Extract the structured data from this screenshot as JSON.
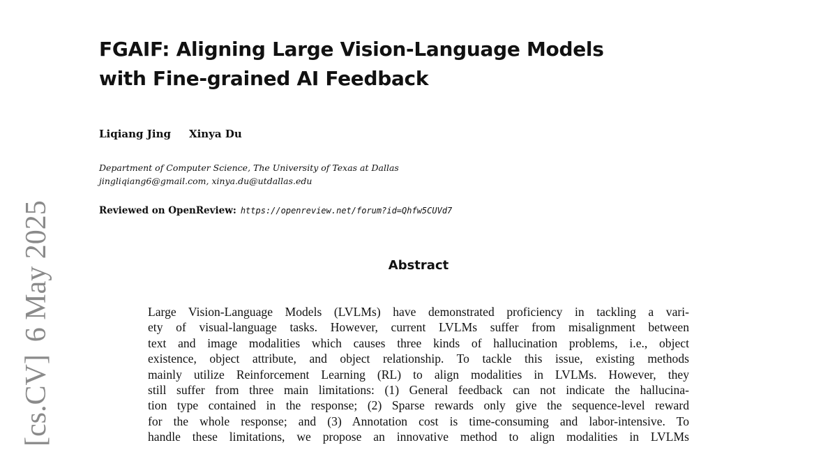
{
  "arxiv_stamp": {
    "category": "[cs.CV]",
    "date": "6 May 2025"
  },
  "paper": {
    "title_lines": [
      "FGAIF: Aligning Large Vision-Language Models",
      "with Fine-grained AI Feedback"
    ],
    "authors": [
      "Liqiang Jing",
      "Xinya Du"
    ],
    "affiliation": "Department of Computer Science, The University of Texas at Dallas",
    "emails": "jingliqiang6@gmail.com, xinya.du@utdallas.edu",
    "review_label": "Reviewed on OpenReview:",
    "review_url": "https://openreview.net/forum?id=Qhfw5CUVd7",
    "abstract_heading": "Abstract",
    "abstract_lines": [
      "Large Vision-Language Models (LVLMs) have demonstrated proficiency in tackling a vari-",
      "ety of visual-language tasks. However, current LVLMs suffer from misalignment between",
      "text and image modalities which causes three kinds of hallucination problems, i.e., object",
      "existence, object attribute, and object relationship. To tackle this issue, existing methods",
      "mainly utilize Reinforcement Learning (RL) to align modalities in LVLMs. However, they",
      "still suffer from three main limitations: (1) General feedback can not indicate the hallucina-",
      "tion type contained in the response; (2) Sparse rewards only give the sequence-level reward",
      "for the whole response; and (3) Annotation cost is time-consuming and labor-intensive. To",
      "handle these limitations, we propose an innovative method to align modalities in LVLMs"
    ]
  }
}
